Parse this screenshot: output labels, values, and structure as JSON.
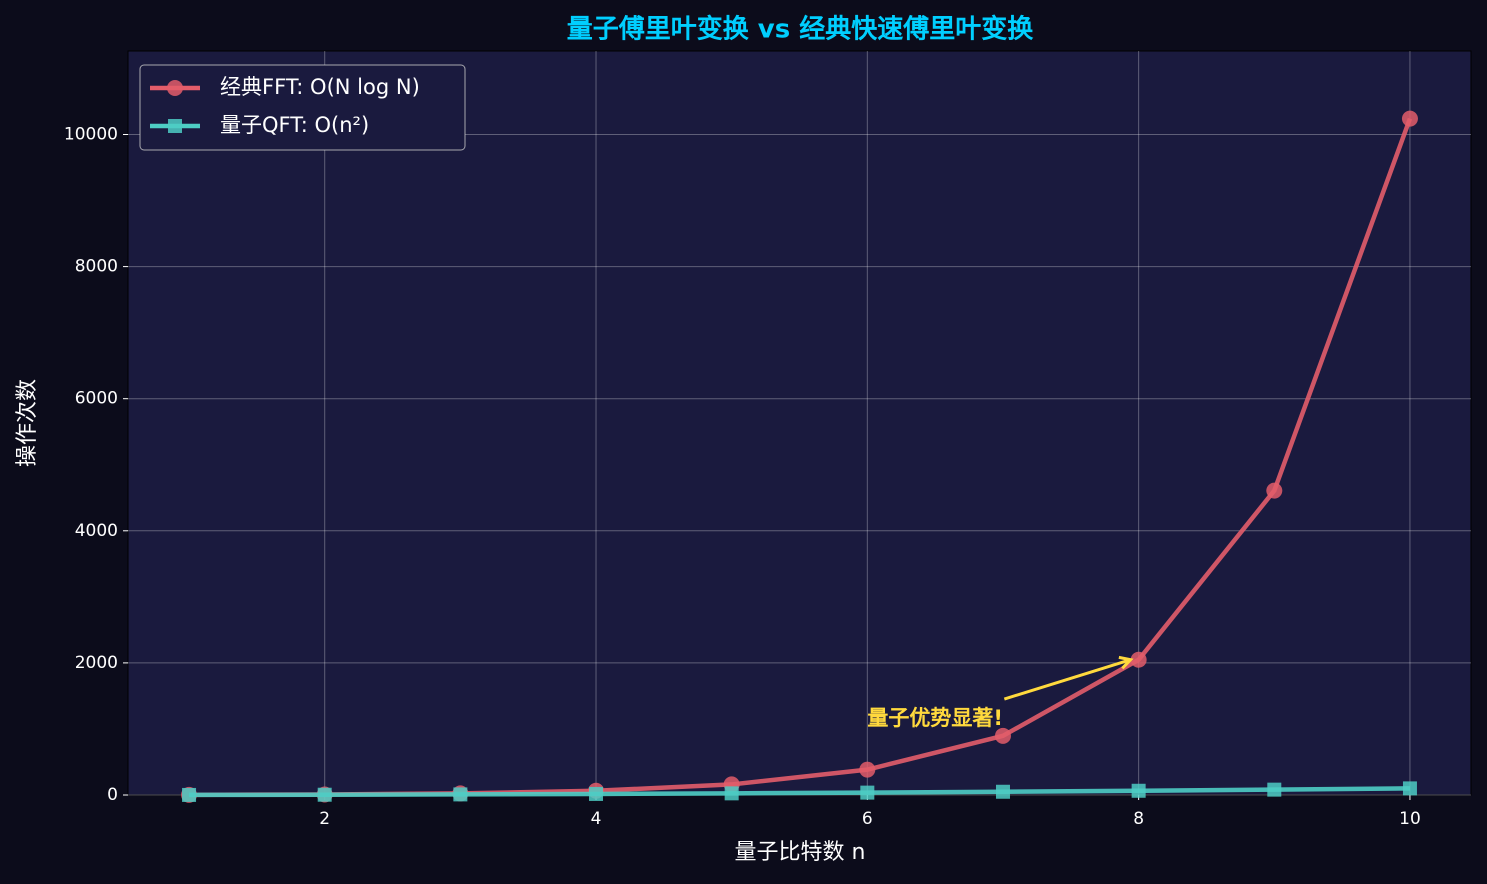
{
  "chart_data": {
    "type": "line",
    "title": "量子傅里叶变换 vs 经典快速傅里叶变换",
    "xlabel": "量子比特数 n",
    "ylabel": "操作次数",
    "x": [
      1,
      2,
      3,
      4,
      5,
      6,
      7,
      8,
      9,
      10
    ],
    "series": [
      {
        "name": "经典FFT: O(N log N)",
        "color": "#e35d6a",
        "marker": "circle",
        "values": [
          2,
          8,
          24,
          64,
          160,
          384,
          896,
          2048,
          4608,
          10240
        ]
      },
      {
        "name": "量子QFT: O(n²)",
        "color": "#4ecdc4",
        "marker": "square",
        "values": [
          1,
          4,
          9,
          16,
          25,
          36,
          49,
          64,
          81,
          100
        ]
      }
    ],
    "xlim": [
      0.55,
      10.45
    ],
    "ylim": [
      0,
      11264
    ],
    "xticks": [
      2,
      4,
      6,
      8,
      10
    ],
    "yticks": [
      0,
      2000,
      4000,
      6000,
      8000,
      10000
    ],
    "grid": true,
    "legend": "upper left",
    "annotation": {
      "text": "量子优势显著!",
      "xy": [
        8,
        2048
      ],
      "xytext": [
        6,
        1150
      ],
      "color": "#ffd93d"
    }
  }
}
